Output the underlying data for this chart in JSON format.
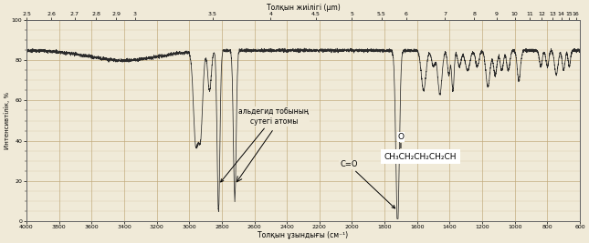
{
  "title_top": "Толқын жиілігі (µm)",
  "xlabel": "Толқын ұзындығы (см⁻¹)",
  "ylabel": "Интенсивтілік, %",
  "bg_color": "#f0ead8",
  "grid_color_major": "#c8b896",
  "grid_color_minor": "#d8cc aa",
  "line_color": "#2a2a2a",
  "x_min": 4000,
  "x_max": 600,
  "y_min": 0,
  "y_max": 100,
  "top_axis_ticks": [
    2.5,
    2.6,
    2.7,
    2.8,
    2.9,
    3,
    3.5,
    4,
    4.5,
    5,
    5.5,
    6,
    7,
    8,
    9,
    10,
    11,
    12,
    13,
    14,
    15,
    16
  ],
  "bottom_ticks": [
    4000,
    3800,
    3600,
    3400,
    3200,
    3000,
    2800,
    2600,
    2400,
    2200,
    2000,
    1800,
    1600,
    1400,
    1200,
    1000,
    800,
    600
  ],
  "annotation_aldehyde": "альдегид тобының\nсутегі атомы",
  "annotation_co": "С=О",
  "molecule_text": "CH₃CH₂CH₂CH₂CH",
  "molecule_o": "O"
}
